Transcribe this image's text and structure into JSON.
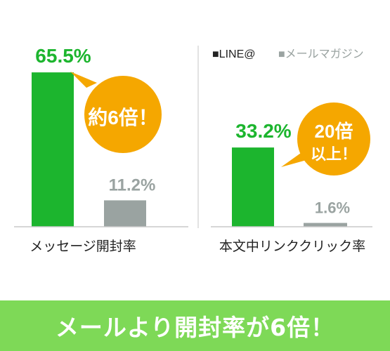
{
  "colors": {
    "line_green": "#1cb52e",
    "mail_gray": "#9aa3a1",
    "callout_orange": "#f5a700",
    "axis": "#c8c8c8",
    "divider": "#d9d9d9",
    "footer_bg": "#7ed957"
  },
  "legend": {
    "line_label": "■LINE@",
    "mail_label": "■メールマガジン"
  },
  "chart_data": [
    {
      "type": "bar",
      "xlabel": "メッセージ開封率",
      "series": [
        {
          "name": "LINE@",
          "value": 65.5,
          "label": "65.5%"
        },
        {
          "name": "メールマガジン",
          "value": 11.2,
          "label": "11.2%"
        }
      ],
      "ylim": [
        0,
        70
      ],
      "callout": {
        "line1": "約6倍！"
      }
    },
    {
      "type": "bar",
      "xlabel": "本文中リンククリック率",
      "series": [
        {
          "name": "LINE@",
          "value": 33.2,
          "label": "33.2%"
        },
        {
          "name": "メールマガジン",
          "value": 1.6,
          "label": "1.6%"
        }
      ],
      "ylim": [
        0,
        50
      ],
      "callout": {
        "line1": "20倍",
        "line2": "以上！"
      }
    }
  ],
  "footer": {
    "text": "メールより開封率が6倍！"
  }
}
